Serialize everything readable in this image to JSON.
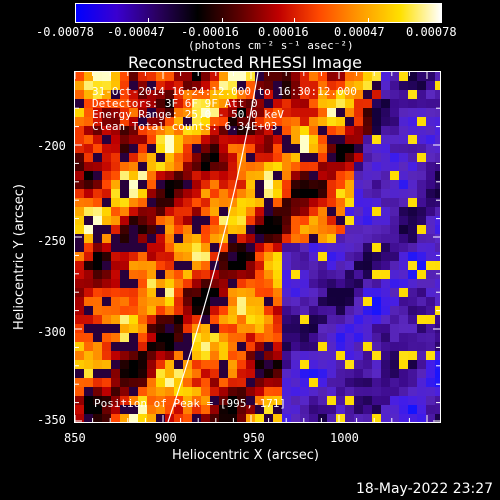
{
  "colorbar": {
    "ticks": [
      "-0.00078",
      "-0.00047",
      "-0.00016",
      "0.00016",
      "0.00047",
      "0.00078"
    ],
    "units": "(photons cm⁻² s⁻¹ asec⁻²)",
    "colors": [
      "#0000ff",
      "#3a00d0",
      "#2a0060",
      "#000000",
      "#5a0000",
      "#c00000",
      "#ff4a00",
      "#ff9a00",
      "#ffe000",
      "#ffffff"
    ]
  },
  "title": "Reconstructed RHESSI Image",
  "overlay": {
    "line1": "31-Oct-2014 16:24:12.000 to 16:30:12.000",
    "line2": "Detectors: 3F 6F 9F Att 0",
    "line3": "Energy Range: 25.0 - 50.0 keV",
    "line4": "Clean    Total counts: 6.34E+03",
    "peak": "Position of Peak = [995,-171]"
  },
  "axes": {
    "xlabel": "Heliocentric X (arcsec)",
    "ylabel": "Heliocentric Y (arcsec)",
    "xticks": [
      "850",
      "900",
      "950",
      "1000"
    ],
    "yticks": [
      "-200",
      "-250",
      "-300",
      "-350"
    ]
  },
  "timestamp": "18-May-2022 23:27"
}
